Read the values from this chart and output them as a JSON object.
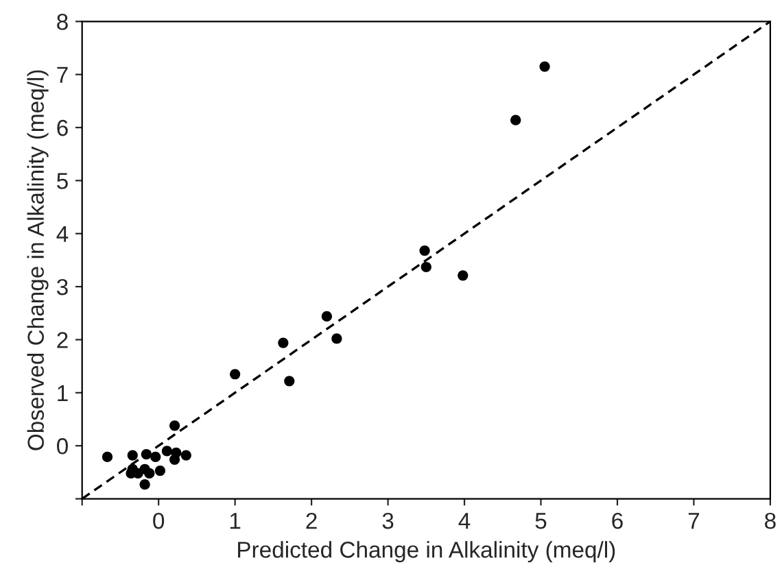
{
  "chart_data": {
    "type": "scatter",
    "xlabel": "Predicted Change in Alkalinity (meq/l)",
    "ylabel": "Observed Change in Alkalinity (meq/l)",
    "xlim": [
      -1,
      8
    ],
    "ylim": [
      -1,
      8
    ],
    "xticks": [
      {
        "value": -1,
        "label": null
      },
      0,
      1,
      2,
      3,
      4,
      5,
      6,
      7,
      8
    ],
    "yticks": [
      {
        "value": -1,
        "label": null
      },
      0,
      1,
      2,
      3,
      4,
      5,
      6,
      7,
      8
    ],
    "grid": false,
    "series": [
      {
        "marker": "circle",
        "color": "#000000",
        "x": [
          5.05,
          4.67,
          3.48,
          3.5,
          3.98,
          1.0,
          1.63,
          1.71,
          2.2,
          2.33,
          -0.67,
          -0.34,
          -0.16,
          -0.04,
          0.11,
          0.21,
          0.21,
          0.23,
          0.36,
          -0.34,
          -0.27,
          -0.18,
          -0.12,
          0.02,
          -0.18,
          -0.36
        ],
        "values": [
          7.15,
          6.14,
          3.68,
          3.37,
          3.21,
          1.35,
          1.94,
          1.22,
          2.44,
          2.02,
          -0.21,
          -0.18,
          -0.16,
          -0.21,
          -0.1,
          0.38,
          -0.26,
          -0.13,
          -0.18,
          -0.44,
          -0.52,
          -0.44,
          -0.52,
          -0.47,
          -0.73,
          -0.52
        ]
      },
      {
        "type": "line",
        "color": "#000000",
        "line_style": "dashed",
        "x": [
          -1,
          8
        ],
        "values": [
          -1,
          8
        ]
      }
    ]
  }
}
